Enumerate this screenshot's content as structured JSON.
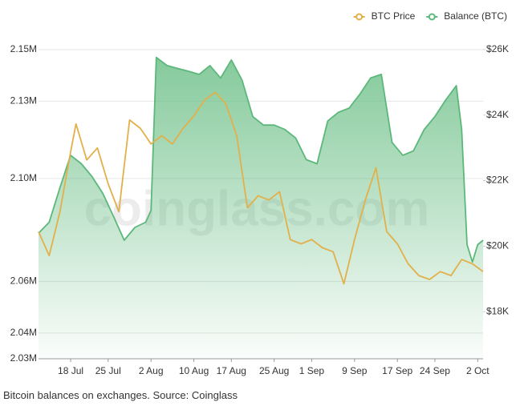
{
  "chart_data": {
    "type": "line",
    "watermark": "coinglass.com",
    "legend": "top-right",
    "xlim": [
      "07-12",
      "10-03"
    ],
    "xticks": [
      {
        "value": "07-18",
        "label": "18 Jul"
      },
      {
        "value": "07-25",
        "label": "25 Jul"
      },
      {
        "value": "08-02",
        "label": "2 Aug"
      },
      {
        "value": "08-10",
        "label": "10 Aug"
      },
      {
        "value": "08-17",
        "label": "17 Aug"
      },
      {
        "value": "08-25",
        "label": "25 Aug"
      },
      {
        "value": "09-01",
        "label": "1 Sep"
      },
      {
        "value": "09-09",
        "label": "9 Sep"
      },
      {
        "value": "09-17",
        "label": "17 Sep"
      },
      {
        "value": "09-24",
        "label": "24 Sep"
      },
      {
        "value": "10-02",
        "label": "2 Oct"
      }
    ],
    "ylim": [
      2030000,
      2150000
    ],
    "yticks": [
      {
        "value": 2030000,
        "label": "2.03M"
      },
      {
        "value": 2040000,
        "label": "2.04M"
      },
      {
        "value": 2060000,
        "label": "2.06M"
      },
      {
        "value": 2100000,
        "label": "2.10M"
      },
      {
        "value": 2130000,
        "label": "2.13M"
      },
      {
        "value": 2150000,
        "label": "2.15M"
      }
    ],
    "y2lim": [
      16560,
      26000
    ],
    "y2ticks": [
      {
        "value": 18000,
        "label": "$18K"
      },
      {
        "value": 20000,
        "label": "$20K"
      },
      {
        "value": 22000,
        "label": "$22K"
      },
      {
        "value": 24000,
        "label": "$24K"
      },
      {
        "value": 26000,
        "label": "$26K"
      }
    ],
    "grid": true,
    "series": [
      {
        "name": "BTC Price",
        "color": "#e2b04a",
        "axis": "y2",
        "x": [
          "07-12",
          "07-14",
          "07-16",
          "07-18",
          "07-19",
          "07-21",
          "07-23",
          "07-25",
          "07-27",
          "07-29",
          "07-31",
          "08-02",
          "08-04",
          "08-06",
          "08-08",
          "08-10",
          "08-12",
          "08-14",
          "08-16",
          "08-18",
          "08-20",
          "08-22",
          "08-24",
          "08-26",
          "08-28",
          "08-30",
          "09-01",
          "09-03",
          "09-05",
          "09-07",
          "09-09",
          "09-11",
          "09-13",
          "09-15",
          "09-17",
          "09-19",
          "09-21",
          "09-23",
          "09-25",
          "09-27",
          "09-29",
          "10-01",
          "10-03"
        ],
        "values": [
          20440,
          19710,
          21050,
          22880,
          23730,
          22630,
          23000,
          21900,
          21050,
          23850,
          23600,
          23120,
          23370,
          23120,
          23600,
          23980,
          24460,
          24700,
          24340,
          23370,
          21170,
          21540,
          21410,
          21660,
          20200,
          20070,
          20200,
          19950,
          19830,
          18850,
          20200,
          21410,
          22390,
          20440,
          20070,
          19460,
          19100,
          18980,
          19220,
          19100,
          19590,
          19460,
          19220
        ]
      },
      {
        "name": "Balance (BTC)",
        "color": "#5cb87a",
        "x": [
          "07-12",
          "07-14",
          "07-16",
          "07-18",
          "07-20",
          "07-22",
          "07-24",
          "07-26",
          "07-28",
          "07-30",
          "08-01",
          "08-02",
          "08-03",
          "08-05",
          "08-07",
          "08-09",
          "08-11",
          "08-13",
          "08-15",
          "08-17",
          "08-19",
          "08-21",
          "08-23",
          "08-25",
          "08-27",
          "08-29",
          "08-31",
          "09-02",
          "09-04",
          "09-06",
          "09-08",
          "09-10",
          "09-12",
          "09-14",
          "09-16",
          "09-18",
          "09-20",
          "09-22",
          "09-24",
          "09-26",
          "09-28",
          "09-29",
          "09-30",
          "10-01",
          "10-02",
          "10-03"
        ],
        "values": [
          2078700,
          2083000,
          2096400,
          2109000,
          2105700,
          2100700,
          2094200,
          2085300,
          2076000,
          2081000,
          2083000,
          2087600,
          2147000,
          2143800,
          2142700,
          2141600,
          2140400,
          2143800,
          2139000,
          2146000,
          2138200,
          2124000,
          2120700,
          2120700,
          2119000,
          2115700,
          2107300,
          2105700,
          2122300,
          2125700,
          2127300,
          2132700,
          2139000,
          2140400,
          2114000,
          2109000,
          2110700,
          2119000,
          2124000,
          2130400,
          2136000,
          2119000,
          2074300,
          2067600,
          2074300,
          2076000
        ]
      }
    ]
  },
  "caption": "Bitcoin balances on exchanges. Source: Coinglass"
}
